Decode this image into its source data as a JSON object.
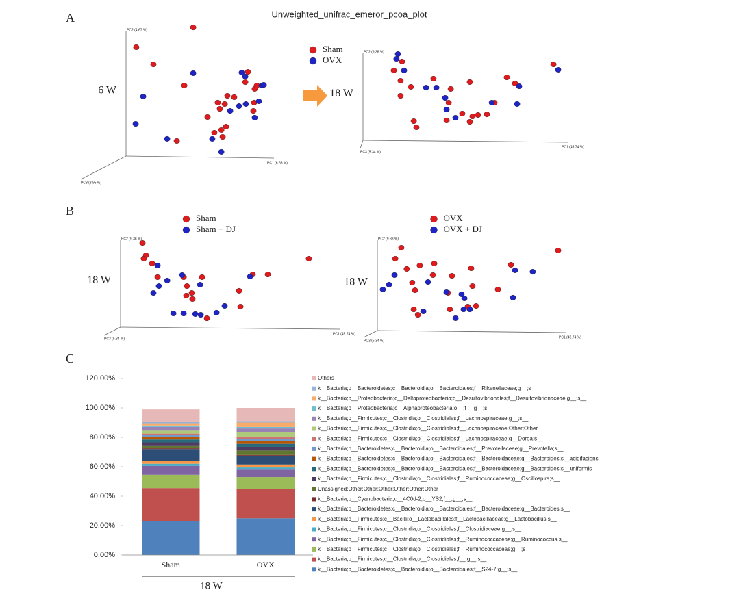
{
  "figure": {
    "title": "Unweighted_unifrac_emeror_pcoa_plot",
    "panel_labels": [
      "A",
      "B",
      "C"
    ]
  },
  "chart_data": [
    {
      "type": "scatter",
      "group_label": "6 W",
      "xlabel": "PC1 (6.65 %)",
      "ylabel": "PC2 (4.67 %)",
      "zlabel": "PC3 (3.95 %)",
      "xlim": [
        0,
        100
      ],
      "ylim": [
        0,
        100
      ],
      "series": [
        {
          "color": "#e01b1e",
          "x": [
            6.9,
            18.5,
            45.4,
            39.4,
            55.1,
            63.4,
            62.0,
            66.7,
            68.5,
            73.1,
            80.6,
            87.0,
            82.4,
            88.4,
            86.6,
            86.1,
            59.7,
            64.4,
            67.6,
            34.3,
            65.3
          ],
          "values": [
            83.7,
            70.5,
            98.9,
            54.2,
            30.0,
            36.3,
            41.1,
            40.0,
            46.3,
            45.3,
            56.8,
            51.6,
            64.7,
            54.2,
            41.1,
            34.7,
            17.9,
            20.0,
            22.6,
            11.6,
            14.7
          ]
        },
        {
          "color": "#1f24c4",
          "x": [
            11.6,
            6.5,
            45.4,
            27.8,
            64.4,
            78.2,
            80.6,
            91.7,
            89.8,
            93.1,
            76.4,
            87.0,
            58.3,
            70.4,
            81.0
          ],
          "values": [
            45.8,
            24.7,
            63.7,
            13.2,
            3.2,
            64.2,
            61.1,
            54.2,
            42.1,
            54.7,
            38.4,
            29.5,
            13.2,
            34.7,
            40.0
          ]
        }
      ]
    },
    {
      "type": "scatter",
      "group_label": "18 W",
      "xlabel": "PC1 (45.74 %)",
      "ylabel": "PC2 (9.38 %)",
      "zlabel": "PC3 (5.34 %)",
      "xlim": [
        0,
        100
      ],
      "ylim": [
        0,
        100
      ],
      "legend": "left",
      "series": [
        {
          "name": "Sham",
          "color": "#e01b1e",
          "x": [
            15.0,
            18.3,
            19.0,
            23.3,
            18.3,
            24.7,
            26.0,
            34.3,
            42.7,
            52.0,
            41.7,
            40.7,
            48.3,
            53.3,
            52.0,
            56.0,
            60.3,
            70.0,
            74.0,
            92.7,
            64.0
          ],
          "values": [
            75.6,
            64.4,
            85.2,
            57.8,
            48.1,
            20.7,
            14.1,
            66.7,
            55.6,
            63.0,
            40.7,
            21.5,
            28.9,
            25.9,
            20.0,
            27.4,
            28.1,
            68.1,
            61.5,
            82.2,
            40.7
          ]
        },
        {
          "name": "OVX",
          "color": "#1f24c4",
          "x": [
            17.0,
            20.0,
            16.3,
            30.7,
            35.7,
            40.0,
            40.7,
            45.0,
            62.7,
            76.0,
            95.0,
            75.0
          ],
          "values": [
            93.3,
            75.6,
            88.1,
            57.0,
            57.0,
            45.9,
            33.3,
            24.4,
            40.7,
            58.5,
            76.3,
            39.3
          ]
        }
      ]
    },
    {
      "type": "scatter",
      "group_label": "18 W",
      "xlabel": "PC1 (45.74 %)",
      "ylabel": "PC2 (9.38 %)",
      "zlabel": "PC3 (5.34 %)",
      "xlim": [
        0,
        100
      ],
      "ylim": [
        0,
        100
      ],
      "legend": "top",
      "series": [
        {
          "name": "Sham",
          "color": "#e01b1e",
          "x": [
            10.0,
            11.6,
            10.6,
            14.4,
            16.9,
            28.8,
            30.3,
            32.5,
            30.0,
            37.2,
            32.8,
            39.4,
            54.7,
            54.1,
            60.3,
            67.2,
            85.9
          ],
          "values": [
            91.1,
            77.8,
            74.1,
            68.9,
            54.1,
            54.1,
            44.4,
            37.0,
            34.1,
            54.1,
            30.4,
            9.6,
            22.2,
            39.3,
            57.0,
            57.0,
            74.1
          ]
        },
        {
          "name": "Sham + DJ",
          "color": "#1f24c4",
          "x": [
            16.9,
            21.3,
            17.5,
            15.0,
            28.1,
            36.3,
            24.1,
            28.8,
            34.1,
            36.6,
            43.8,
            47.5,
            59.1
          ],
          "values": [
            66.7,
            50.4,
            44.4,
            37.0,
            56.3,
            45.9,
            14.8,
            14.8,
            14.1,
            13.3,
            15.6,
            23.0,
            54.8
          ]
        }
      ]
    },
    {
      "type": "scatter",
      "group_label": "18 W",
      "xlabel": "PC1 (45.74 %)",
      "ylabel": "PC2 (9.38 %)",
      "zlabel": "PC3 (5.34 %)",
      "xlim": [
        0,
        100
      ],
      "ylim": [
        0,
        100
      ],
      "legend": "top",
      "series": [
        {
          "name": "OVX",
          "color": "#e01b1e",
          "x": [
            12.7,
            9.5,
            15.6,
            22.5,
            18.5,
            20.0,
            29.5,
            30.2,
            39.6,
            49.8,
            50.5,
            70.9,
            64.0,
            96.0,
            37.5,
            19.3,
            21.5,
            38.5,
            52.4,
            48.0
          ],
          "values": [
            86.4,
            75.0,
            64.3,
            67.9,
            50.0,
            42.1,
            57.9,
            70.0,
            57.1,
            65.0,
            46.4,
            68.6,
            42.9,
            83.6,
            39.3,
            22.1,
            16.4,
            22.1,
            25.7,
            25.0
          ]
        },
        {
          "name": "OVX + DJ",
          "color": "#1f24c4",
          "x": [
            9.1,
            6.2,
            2.9,
            24.4,
            36.7,
            46.2,
            45.8,
            49.1,
            41.5,
            44.7,
            72.0,
            73.1,
            82.5,
            26.9
          ],
          "values": [
            57.9,
            47.9,
            42.9,
            20.0,
            40.0,
            33.6,
            22.1,
            22.1,
            12.9,
            37.9,
            34.3,
            62.9,
            61.4,
            50.7
          ]
        }
      ]
    },
    {
      "type": "bar",
      "stacked": true,
      "group_label": "18 W",
      "categories": [
        "Sham",
        "OVX"
      ],
      "ylim": [
        0,
        120
      ],
      "legend": "right",
      "yticks": [
        {
          "value": 0,
          "label": "0.00%"
        },
        {
          "value": 20,
          "label": "20.00%"
        },
        {
          "value": 40,
          "label": "40.00%"
        },
        {
          "value": 60,
          "label": "60.00%"
        },
        {
          "value": 80,
          "label": "80.00%"
        },
        {
          "value": 100,
          "label": "100.00%"
        },
        {
          "value": 120,
          "label": "120.00%"
        }
      ],
      "series": [
        {
          "name": "k__Bacteria;p__Bacteroidetes;c__Bacteroidia;o__Bacteroidales;f__S24-7;g__;s__",
          "color": "#4f81bd",
          "values": [
            23,
            25
          ]
        },
        {
          "name": "k__Bacteria;p__Firmicutes;c__Clostridia;o__Clostridiales;f__;g__;s__",
          "color": "#c0504d",
          "values": [
            22.5,
            20
          ]
        },
        {
          "name": "k__Bacteria;p__Firmicutes;c__Clostridia;o__Clostridiales;f__Ruminococcaceae;g__;s__",
          "color": "#9bbb59",
          "values": [
            9,
            8
          ]
        },
        {
          "name": "k__Bacteria;p__Firmicutes;c__Clostridia;o__Clostridiales;f__Ruminococcaceae;g__Ruminococcus;s__",
          "color": "#8064a2",
          "values": [
            6,
            5
          ]
        },
        {
          "name": "k__Bacteria;p__Firmicutes;c__Clostridia;o__Clostridiales;f__Clostridiaceae;g__;s__",
          "color": "#4bacc6",
          "values": [
            1.5,
            1.5
          ]
        },
        {
          "name": "k__Bacteria;p__Firmicutes;c__Bacilli;o__Lactobacillales;f__Lactobacillaceae;g__Lactobacillus;s__",
          "color": "#f79646",
          "values": [
            2,
            2
          ]
        },
        {
          "name": "k__Bacteria;p__Bacteroidetes;c__Bacteroidia;o__Bacteroidales;f__Bacteroidaceae;g__Bacteroides;s__",
          "color": "#2c4d75",
          "values": [
            8,
            6
          ]
        },
        {
          "name": "k__Bacteria;p__Cyanobacteria;c__4C0d-2;o__YS2;f__;g__;s__",
          "color": "#772c2a",
          "values": [
            0.5,
            0.5
          ]
        },
        {
          "name": "Unassigned;Other;Other;Other;Other;Other;Other",
          "color": "#5f7530",
          "values": [
            2,
            3
          ]
        },
        {
          "name": "k__Bacteria;p__Firmicutes;c__Clostridia;o__Clostridiales;f__Ruminococcaceae;g__Oscillospira;s__",
          "color": "#4d3b62",
          "values": [
            2,
            2.5
          ]
        },
        {
          "name": "k__Bacteria;p__Bacteroidetes;c__Bacteroidia;o__Bacteroidales;f__Bacteroidaceae;g__Bacteroides;s__uniformis",
          "color": "#276a7c",
          "values": [
            2,
            2
          ]
        },
        {
          "name": "k__Bacteria;p__Bacteroidetes;c__Bacteroidia;o__Bacteroidales;f__Bacteroidaceae;g__Bacteroides;s__acidifaciens",
          "color": "#b65708",
          "values": [
            1.5,
            2
          ]
        },
        {
          "name": "k__Bacteria;p__Bacteroidetes;c__Bacteroidia;o__Bacteroidales;f__Prevotellaceae;g__Prevotella;s__",
          "color": "#729aca",
          "values": [
            1.5,
            1.5
          ]
        },
        {
          "name": "k__Bacteria;p__Firmicutes;c__Clostridia;o__Clostridiales;f__Lachnospiraceae;g__Dorea;s__",
          "color": "#cd7371",
          "values": [
            1,
            1.5
          ]
        },
        {
          "name": "k__Bacteria;p__Firmicutes;c__Clostridia;o__Clostridiales;f__Lachnospiraceae;Other;Other",
          "color": "#afc97a",
          "values": [
            2,
            3
          ]
        },
        {
          "name": "k__Bacteria;p__Firmicutes;c__Clostridia;o__Clostridiales;f__Lachnospiraceae;g__;s__",
          "color": "#9983b5",
          "values": [
            2.5,
            2.5
          ]
        },
        {
          "name": "k__Bacteria;p__Proteobacteria;c__Alphaproteobacteria;o__;f__;g__;s__",
          "color": "#6fbdd1",
          "values": [
            1,
            1
          ]
        },
        {
          "name": "k__Bacteria;p__Proteobacteria;c__Deltaproteobacteria;o__Desulfovibrionales;f__Desulfovibrionaceae;g__;s__",
          "color": "#f9ab6b",
          "values": [
            1.5,
            3
          ]
        },
        {
          "name": "k__Bacteria;p__Bacteroidetes;c__Bacteroidia;o__Bacteroidales;f__Rikenellaceae;g__;s__",
          "color": "#95b3d7",
          "values": [
            1,
            1
          ]
        },
        {
          "name": "Others",
          "color": "#e6b9b8",
          "values": [
            8.5,
            9
          ]
        }
      ]
    }
  ]
}
